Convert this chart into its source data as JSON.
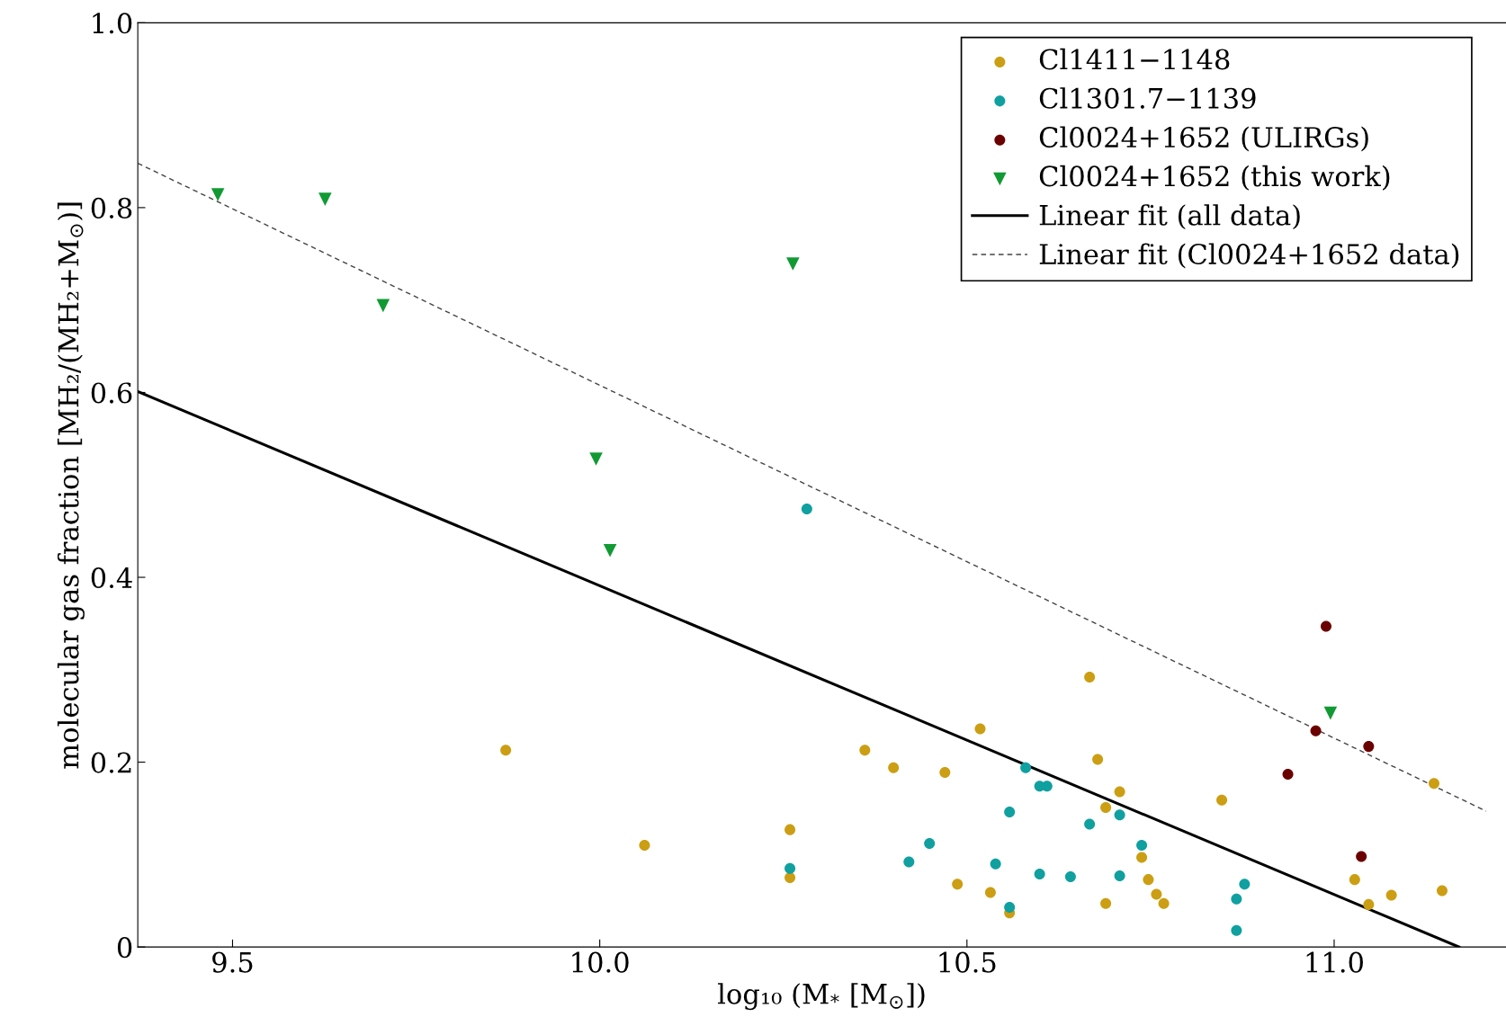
{
  "chart_data": {
    "type": "scatter",
    "xlabel": "log₁₀ (M$_{*}$ [M$_{⊙}$])",
    "ylabel": "molecular gas fraction [MH₂/(MH₂+M$_{⊙}$)]",
    "xlim": [
      9.371,
      11.234
    ],
    "ylim": [
      0,
      1
    ],
    "xticks": [
      9.5,
      {
        "value": 10,
        "label": "10.0"
      },
      10.5,
      {
        "value": 11,
        "label": "11.0"
      }
    ],
    "yticks": [
      0,
      0.2,
      0.4,
      0.6,
      0.8,
      {
        "value": 1,
        "label": "1.0"
      }
    ],
    "grid": false,
    "legend": "top right",
    "series": [
      {
        "name": "Cl1411−1148",
        "color": "#cc9e13",
        "marker": "circle",
        "x": [
          9.872,
          10.061,
          10.259,
          10.259,
          10.361,
          10.4,
          10.47,
          10.518,
          10.667,
          10.678,
          10.708,
          10.689,
          10.487,
          10.532,
          10.558,
          10.689,
          10.738,
          10.747,
          10.758,
          10.768,
          10.847,
          11.028,
          11.047,
          11.078,
          11.136,
          11.147
        ],
        "values": [
          0.213,
          0.11,
          0.127,
          0.075,
          0.213,
          0.194,
          0.189,
          0.236,
          0.292,
          0.203,
          0.168,
          0.151,
          0.068,
          0.059,
          0.037,
          0.047,
          0.097,
          0.073,
          0.057,
          0.047,
          0.159,
          0.073,
          0.046,
          0.056,
          0.177,
          0.061
        ]
      },
      {
        "name": "Cl1301.7−1139",
        "color": "#10a0a0",
        "marker": "circle",
        "x": [
          10.282,
          10.58,
          10.599,
          10.609,
          10.558,
          10.708,
          10.667,
          10.449,
          10.738,
          10.421,
          10.539,
          10.259,
          10.599,
          10.708,
          10.641,
          10.878,
          10.867,
          10.558,
          10.867
        ],
        "values": [
          0.474,
          0.194,
          0.174,
          0.174,
          0.146,
          0.143,
          0.133,
          0.112,
          0.11,
          0.092,
          0.09,
          0.085,
          0.079,
          0.077,
          0.076,
          0.068,
          0.052,
          0.043,
          0.018
        ]
      },
      {
        "name": "Cl0024+1652 (ULIRGs)",
        "color": "#6b0000",
        "marker": "circle",
        "x": [
          10.989,
          10.975,
          11.047,
          10.937,
          11.037
        ],
        "values": [
          0.347,
          0.234,
          0.217,
          0.187,
          0.098
        ]
      },
      {
        "name": "Cl0024+1652 (this work)",
        "color": "#119a33",
        "marker": "triangle",
        "x": [
          9.48,
          9.626,
          9.705,
          10.263,
          9.995,
          10.014,
          10.995
        ],
        "values": [
          0.814,
          0.809,
          0.694,
          0.739,
          0.528,
          0.429,
          0.253
        ]
      },
      {
        "name": "Linear fit (all data)",
        "type": "line",
        "color": "#000000",
        "line_style": "solid",
        "x": [
          9.371,
          11.17
        ],
        "values": [
          0.601,
          0
        ]
      },
      {
        "name": "Linear fit (Cl0024+1652 data)",
        "type": "line",
        "color": "#444444",
        "line_style": "dashed",
        "x": [
          9.371,
          11.207
        ],
        "values": [
          0.848,
          0.147
        ]
      }
    ]
  }
}
